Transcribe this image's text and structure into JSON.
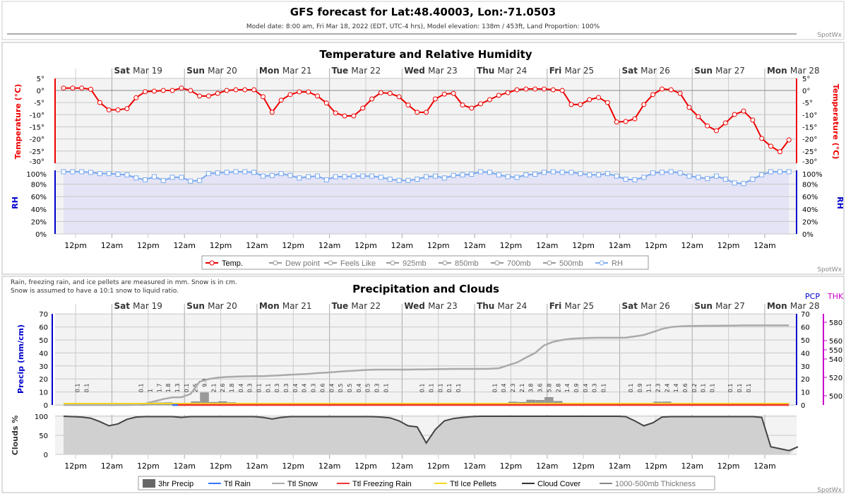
{
  "header": {
    "title": "GFS forecast for Lat:48.40003, Lon:-71.0503",
    "subtitle": "Model date: 8:00 am, Fri Mar 18, 2022 (EDT, UTC-4 hrs), Model elevation: 138m / 453ft, Land Proportion: 100%",
    "credit": "SpotWx"
  },
  "days": [
    {
      "dow": "Sat",
      "date": "Mar 19"
    },
    {
      "dow": "Sun",
      "date": "Mar 20"
    },
    {
      "dow": "Mon",
      "date": "Mar 21"
    },
    {
      "dow": "Tue",
      "date": "Mar 22"
    },
    {
      "dow": "Wed",
      "date": "Mar 23"
    },
    {
      "dow": "Thu",
      "date": "Mar 24"
    },
    {
      "dow": "Fri",
      "date": "Mar 25"
    },
    {
      "dow": "Sat",
      "date": "Mar 26"
    },
    {
      "dow": "Sun",
      "date": "Mar 27"
    },
    {
      "dow": "Mon",
      "date": "Mar 28"
    }
  ],
  "time_ticks": [
    "12pm",
    "12am"
  ],
  "chart_data": [
    {
      "type": "line",
      "title": "Temperature and Relative Humidity",
      "x_start": "8:00 am, Fri Mar 18, 2022",
      "x_step_hours": 3,
      "temperature": {
        "ylabel": "Temperature (°C)",
        "ylim": [
          -30,
          5
        ],
        "ticks": [
          "5°",
          "0°",
          "-5°",
          "-10°",
          "-15°",
          "-20°",
          "-25°",
          "-30°"
        ],
        "color": "#ff0000",
        "values": [
          1,
          1,
          1,
          0.5,
          -5,
          -8,
          -8,
          -7.5,
          -3,
          -0.5,
          -0.3,
          0,
          0,
          1,
          0,
          -2.3,
          -2.3,
          -1.2,
          0,
          0.3,
          0.3,
          0.3,
          -2.6,
          -9,
          -4,
          -1.7,
          -0.6,
          -0.6,
          -2.3,
          -5.2,
          -9.3,
          -10.5,
          -10.5,
          -7.3,
          -3.5,
          -0.9,
          -1.2,
          -2.6,
          -6,
          -9,
          -9,
          -3.5,
          -1.5,
          -1.2,
          -6,
          -7.3,
          -5.5,
          -3.8,
          -2,
          -0.9,
          0.3,
          0.6,
          0.6,
          0.6,
          0.3,
          0,
          -5.8,
          -5.8,
          -3.8,
          -2.9,
          -5,
          -13,
          -12.8,
          -11.7,
          -5.8,
          -1.7,
          0.6,
          0.3,
          -1.2,
          -7,
          -10.8,
          -14.6,
          -16.6,
          -13.4,
          -9.9,
          -8.5,
          -12.2,
          -19.8,
          -23,
          -25.3,
          -20.4
        ]
      },
      "rh": {
        "ylabel": "RH",
        "ylim": [
          0,
          100
        ],
        "ticks": [
          "100%",
          "80%",
          "60%",
          "40%",
          "20%",
          "0%"
        ],
        "color": "#5599ee",
        "values": [
          100,
          100,
          100,
          99,
          97,
          97,
          96,
          95,
          90,
          87,
          92,
          86,
          91,
          91,
          85,
          86,
          97,
          98,
          99,
          100,
          100,
          99,
          93,
          94,
          97,
          94,
          90,
          92,
          93,
          87,
          92,
          92,
          93,
          93,
          93,
          91,
          88,
          86,
          86,
          88,
          92,
          93,
          90,
          94,
          95,
          96,
          100,
          99,
          95,
          92,
          91,
          95,
          96,
          99,
          100,
          99,
          99,
          97,
          95,
          95,
          97,
          93,
          88,
          87,
          91,
          98,
          99,
          100,
          98,
          93,
          91,
          89,
          93,
          88,
          82,
          81,
          88,
          95,
          100,
          100,
          100
        ]
      },
      "legend": [
        "Temp.",
        "Dew point",
        "Feels Like",
        "925mb",
        "850mb",
        "700mb",
        "500mb",
        "RH"
      ],
      "legend_placement": "bottom"
    },
    {
      "type": "bar+line",
      "title": "Precipitation and Clouds",
      "notes": [
        "Rain, freezing rain, and ice pellets are measured in mm. Snow is in cm.",
        "Snow is assumed to have a 10:1 snow to liquid ratio."
      ],
      "precip": {
        "ylabel": "Precip (mm/cm)",
        "right_label": "PCP",
        "ylim": [
          0,
          70
        ],
        "ticks": [
          "70",
          "60",
          "50",
          "40",
          "30",
          "20",
          "10",
          "0"
        ],
        "bars_3hr": [
          null,
          0.1,
          0.1,
          null,
          null,
          null,
          null,
          null,
          0.1,
          1,
          1.7,
          1.8,
          1.3,
          0.1,
          2.5,
          9.4,
          2.1,
          2.6,
          1.8,
          0.4,
          0.3,
          0.1,
          0.1,
          0.3,
          0.3,
          0.4,
          0.4,
          0.3,
          0.6,
          0.4,
          0.5,
          0.5,
          0.4,
          0.5,
          0.3,
          0.1,
          null,
          null,
          null,
          0.1,
          0.1,
          0.1,
          0.1,
          0.1,
          null,
          null,
          null,
          0.1,
          0.4,
          2.3,
          2.1,
          3.8,
          3.6,
          5.8,
          2.8,
          1.4,
          0.9,
          0.4,
          0.3,
          0.1,
          null,
          null,
          0.1,
          0.9,
          1.1,
          2.3,
          2.4,
          1.4,
          0.6,
          0.2,
          0.1,
          0.1,
          null,
          0.1,
          0.1,
          0.1,
          null,
          null,
          null,
          null
        ],
        "total_snow": [
          0,
          0,
          0,
          0,
          0,
          0,
          0,
          0,
          0.1,
          1,
          2.7,
          4.5,
          5.8,
          5.9,
          8.4,
          17.8,
          19.9,
          21,
          21.5,
          21.8,
          22,
          22.1,
          22.2,
          22.5,
          22.8,
          23.2,
          23.6,
          23.9,
          24.5,
          24.9,
          25.4,
          25.9,
          26.3,
          26.8,
          27.1,
          27.2,
          27.2,
          27.2,
          27.2,
          27.3,
          27.4,
          27.5,
          27.6,
          27.7,
          27.7,
          27.7,
          27.7,
          27.8,
          28.2,
          30.5,
          32.6,
          36.4,
          40,
          45.8,
          48.6,
          50,
          50.9,
          51.3,
          51.6,
          51.7,
          51.7,
          51.7,
          51.8,
          52.7,
          53.8,
          56.1,
          58.5,
          59.9,
          60.5,
          60.7,
          60.8,
          60.9,
          60.9,
          61,
          61.1,
          61.2,
          61.2,
          61.2,
          61.2,
          61.2,
          61.2
        ],
        "series_colors": {
          "3hr Precip": "#666666",
          "Ttl Rain": "#3377ff",
          "Ttl Snow": "#999999",
          "Ttl Freezing Rain": "#ff3333",
          "Ttl Ice Pellets": "#ffdd22",
          "Cloud Cover": "#333333",
          "1000-500mb Thickness": "#888888"
        }
      },
      "thickness": {
        "right_label": "THK",
        "ticks": [
          "580",
          "560",
          "550",
          "540",
          "520",
          "500"
        ],
        "color": "#cc00cc"
      },
      "clouds": {
        "ylabel": "Clouds %",
        "ylim": [
          0,
          100
        ],
        "ticks": [
          "100",
          "50",
          "0"
        ],
        "values": [
          100,
          99,
          98,
          95,
          86,
          75,
          80,
          92,
          98,
          99,
          99,
          99,
          99,
          97,
          99,
          99,
          99,
          99,
          99,
          99,
          99,
          99,
          97,
          93,
          97,
          99,
          99,
          99,
          99,
          99,
          99,
          99,
          99,
          99,
          99,
          98,
          96,
          88,
          75,
          72,
          30,
          65,
          88,
          94,
          97,
          99,
          100,
          100,
          100,
          100,
          100,
          100,
          100,
          100,
          100,
          100,
          100,
          100,
          100,
          100,
          100,
          100,
          99,
          88,
          75,
          83,
          98,
          99,
          99,
          99,
          99,
          99,
          99,
          99,
          99,
          99,
          99,
          97,
          20,
          15,
          10,
          20
        ]
      },
      "legend": [
        "3hr Precip",
        "Ttl Rain",
        "Ttl Snow",
        "Ttl Freezing Rain",
        "Ttl Ice Pellets",
        "Cloud Cover",
        "1000-500mb Thickness"
      ],
      "legend_placement": "bottom"
    }
  ]
}
